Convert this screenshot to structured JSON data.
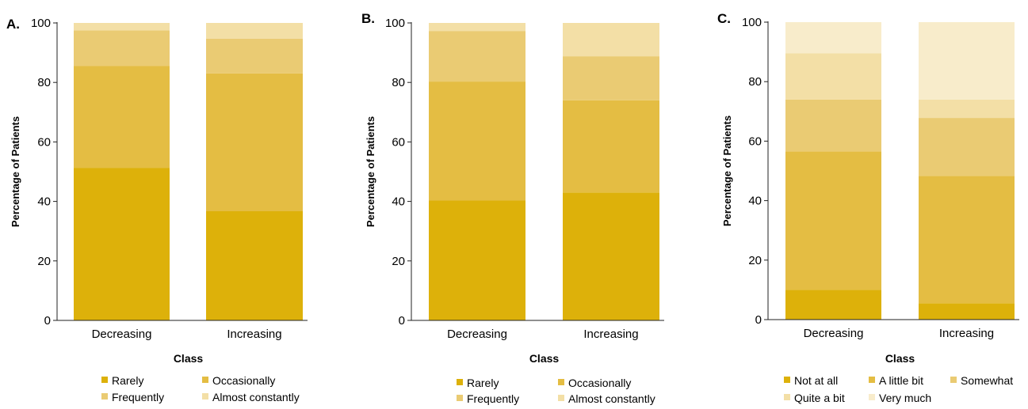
{
  "chart_data": [
    {
      "panel": "A.",
      "type": "bar",
      "stacked": true,
      "categories": [
        "Decreasing",
        "Increasing"
      ],
      "xlabel": "Class",
      "ylabel": "Percentage of Patients",
      "ylim": [
        0,
        100
      ],
      "yticks": [
        0,
        20,
        40,
        60,
        80,
        100
      ],
      "legend_position": "bottom",
      "series": [
        {
          "name": "Rarely",
          "values": [
            51.3,
            36.7
          ],
          "color": "#DDB10A"
        },
        {
          "name": "Occasionally",
          "values": [
            34.2,
            46.3
          ],
          "color": "#E4BD43"
        },
        {
          "name": "Frequently",
          "values": [
            12.0,
            11.7
          ],
          "color": "#EACB73"
        },
        {
          "name": "Almost constantly",
          "values": [
            2.5,
            5.3
          ],
          "color": "#F3DFA6"
        }
      ]
    },
    {
      "panel": "B.",
      "type": "bar",
      "stacked": true,
      "categories": [
        "Decreasing",
        "Increasing"
      ],
      "xlabel": "Class",
      "ylabel": "Percentage of Patients",
      "ylim": [
        0,
        100
      ],
      "yticks": [
        0,
        20,
        40,
        60,
        80,
        100
      ],
      "legend_position": "bottom",
      "series": [
        {
          "name": "Rarely",
          "values": [
            40.3,
            43.0
          ],
          "color": "#DDB10A"
        },
        {
          "name": "Occasionally",
          "values": [
            40.0,
            31.0
          ],
          "color": "#E4BD43"
        },
        {
          "name": "Frequently",
          "values": [
            17.0,
            14.8
          ],
          "color": "#EACB73"
        },
        {
          "name": "Almost constantly",
          "values": [
            2.7,
            11.2
          ],
          "color": "#F3DFA6"
        }
      ]
    },
    {
      "panel": "C.",
      "type": "bar",
      "stacked": true,
      "categories": [
        "Decreasing",
        "Increasing"
      ],
      "xlabel": "Class",
      "ylabel": "Percentage of Patients",
      "ylim": [
        0,
        100
      ],
      "yticks": [
        0,
        20,
        40,
        60,
        80,
        100
      ],
      "legend_position": "bottom",
      "series": [
        {
          "name": "Not at all",
          "values": [
            10.0,
            5.5
          ],
          "color": "#DDB10A"
        },
        {
          "name": "A little bit",
          "values": [
            46.5,
            42.8
          ],
          "color": "#E4BD43"
        },
        {
          "name": "Somewhat",
          "values": [
            17.5,
            19.5
          ],
          "color": "#EACB73"
        },
        {
          "name": "Quite a bit",
          "values": [
            15.5,
            6.2
          ],
          "color": "#F3DFA6"
        },
        {
          "name": "Very much",
          "values": [
            10.5,
            26.0
          ],
          "color": "#F8ECCB"
        }
      ]
    }
  ]
}
